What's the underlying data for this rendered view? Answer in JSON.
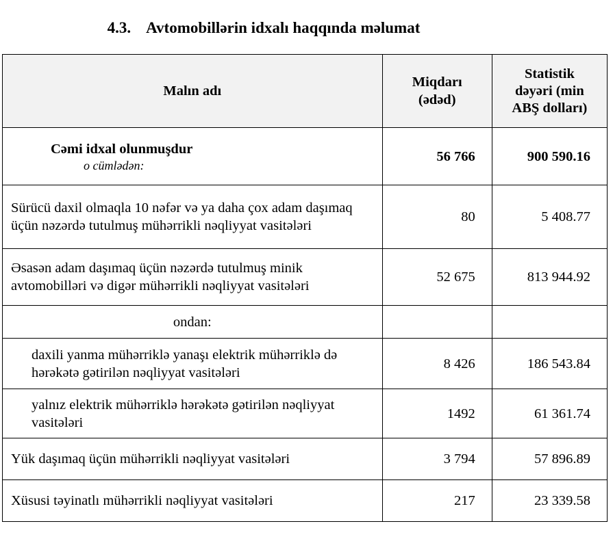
{
  "title": {
    "number": "4.3.",
    "text": "Avtomobillərin idxalı haqqında məlumat"
  },
  "headers": {
    "name": "Malın adı",
    "quantity": "Miqdarı (ədəd)",
    "value": "Statistik dəyəri (min ABŞ dolları)"
  },
  "total": {
    "label": "Cəmi idxal olunmuşdur",
    "sublabel": "o cümlədən:",
    "quantity": "56 766",
    "value": "900 590.16"
  },
  "rows": [
    {
      "label": "Sürücü daxil olmaqla 10 nəfər və ya daha çox adam daşımaq üçün nəzərdə tutulmuş mühərrikli nəqliyyat vasitələri",
      "quantity": "80",
      "value": "5 408.77"
    },
    {
      "label": "Əsasən adam daşımaq üçün nəzərdə tutulmuş minik avtomobilləri və digər mühərrikli nəqliyyat vasitələri",
      "quantity": "52 675",
      "value": "813 944.92"
    },
    {
      "label": "ondan:"
    },
    {
      "label": "daxili yanma mühərriklə yanaşı elektrik mühərriklə də hərəkətə gətirilən nəqliyyat vasitələri",
      "quantity": "8 426",
      "value": "186 543.84"
    },
    {
      "label": "yalnız elektrik mühərriklə hərəkətə gətirilən nəqliyyat vasitələri",
      "quantity": "1492",
      "value": "61 361.74"
    },
    {
      "label": "Yük daşımaq üçün mühərrikli nəqliyyat vasitələri",
      "quantity": "3 794",
      "value": "57 896.89"
    },
    {
      "label": "Xüsusi təyinatlı mühərrikli nəqliyyat vasitələri",
      "quantity": "217",
      "value": "23 339.58"
    }
  ]
}
